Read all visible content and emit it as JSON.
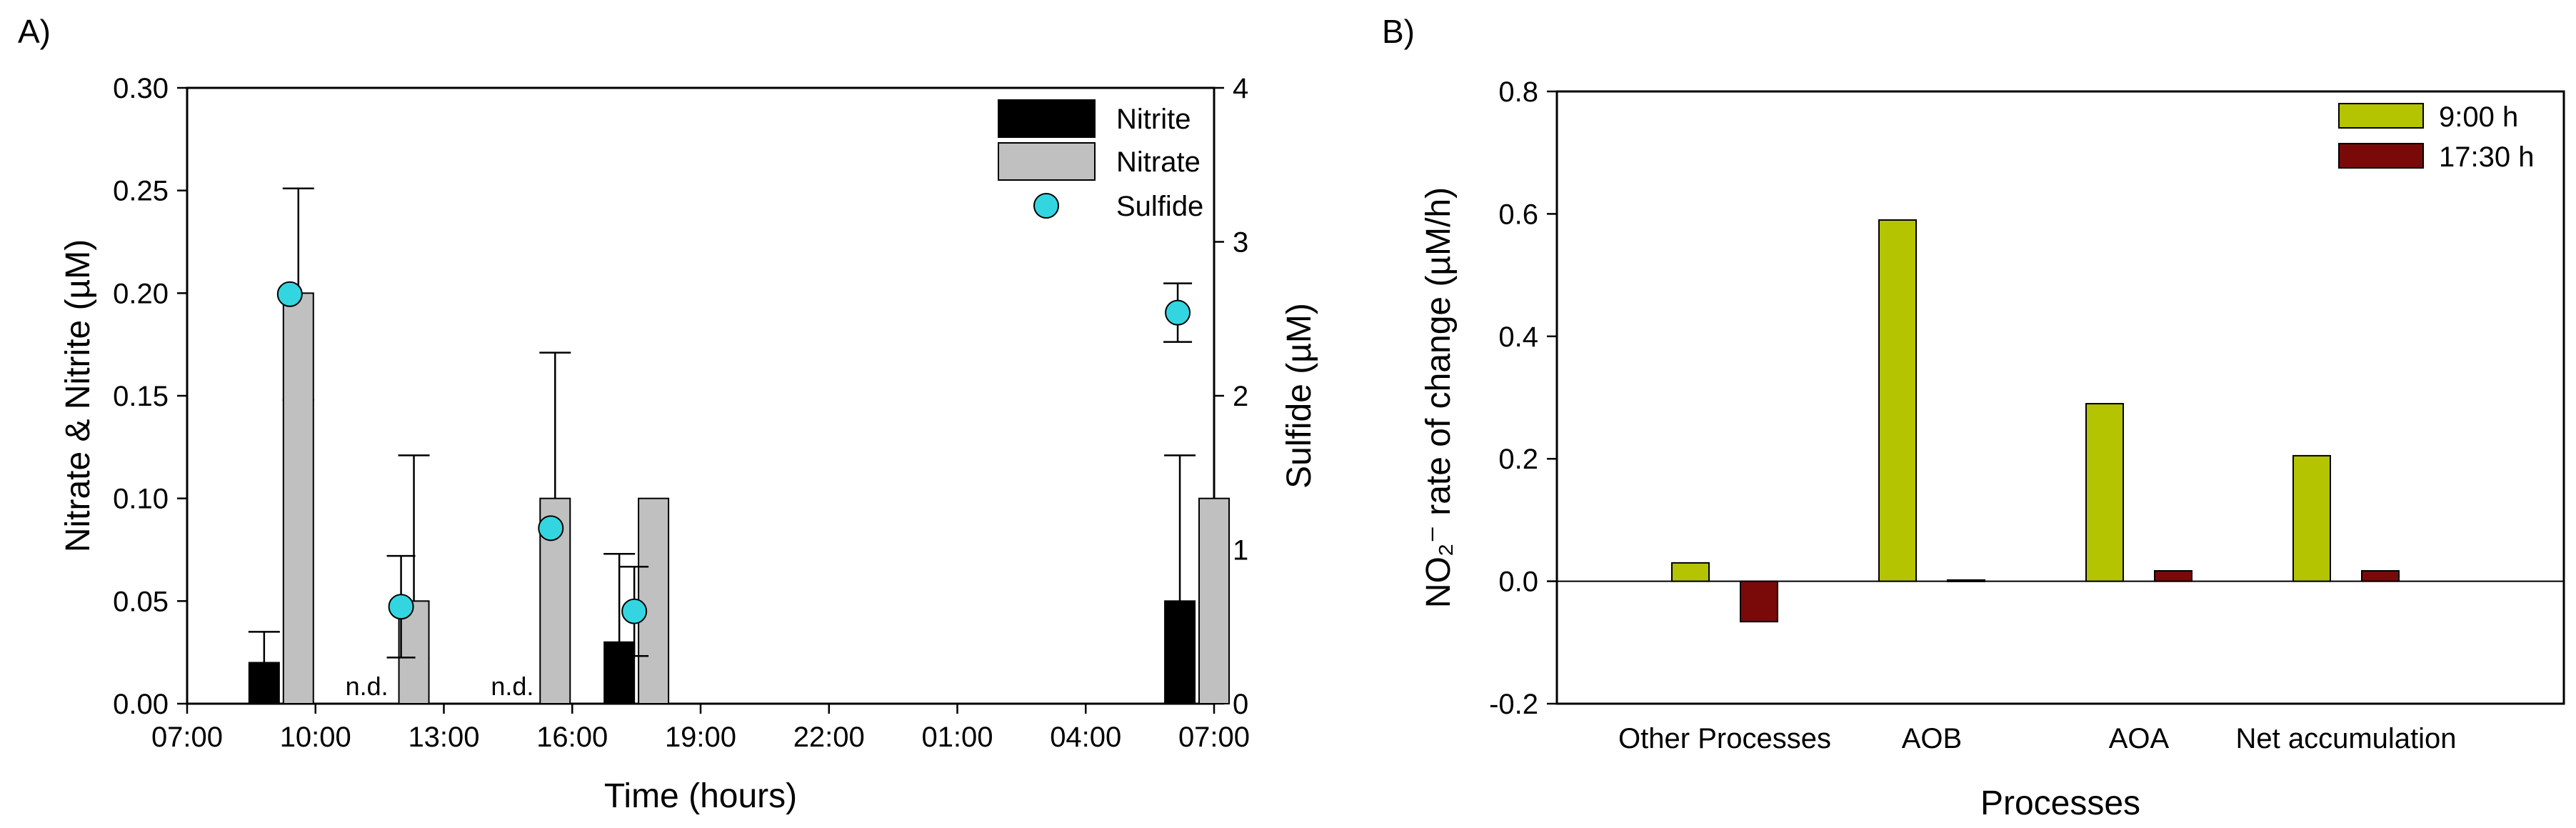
{
  "chart_data": [
    {
      "panel_label": "A)",
      "type": "bar",
      "xlabel": "Time (hours)",
      "ylabel": "Nitrate & Nitrite (µM)",
      "y2label": "Sulfide (µM)",
      "x_ticks": [
        "07:00",
        "10:00",
        "13:00",
        "16:00",
        "19:00",
        "22:00",
        "01:00",
        "04:00",
        "07:00"
      ],
      "x_tick_hours": [
        0,
        3,
        6,
        9,
        12,
        15,
        18,
        21,
        24
      ],
      "xlim_hours": [
        0,
        24
      ],
      "ylim": [
        0,
        0.3
      ],
      "y_ticks": [
        "0.00",
        "0.05",
        "0.10",
        "0.15",
        "0.20",
        "0.25",
        "0.30"
      ],
      "y_tick_values": [
        0,
        0.05,
        0.1,
        0.15,
        0.2,
        0.25,
        0.3
      ],
      "y2lim": [
        0,
        4
      ],
      "y2_ticks": [
        "0",
        "1",
        "2",
        "3",
        "4"
      ],
      "y2_tick_values": [
        0,
        1,
        2,
        3,
        4
      ],
      "legend": [
        {
          "name": "Nitrite",
          "color": "#000000",
          "kind": "bar"
        },
        {
          "name": "Nitrate",
          "color": "#c0c0c0",
          "kind": "bar"
        },
        {
          "name": "Sulfide",
          "color": "#33d6e0",
          "kind": "point"
        }
      ],
      "nitrite": [
        {
          "hour": 1.8,
          "value": 0.02,
          "err": 0.015
        },
        {
          "hour": 10.1,
          "value": 0.03,
          "err": 0.043
        },
        {
          "hour": 23.2,
          "value": 0.05,
          "err": 0.071
        }
      ],
      "nitrate": [
        {
          "hour": 2.6,
          "value": 0.2,
          "err": 0.051,
          "err_lower": 0.052
        },
        {
          "hour": 5.3,
          "value": 0.05,
          "err": 0.071,
          "err_lower": 0.028
        },
        {
          "hour": 8.6,
          "value": 0.1,
          "err": 0.071
        },
        {
          "hour": 10.9,
          "value": 0.1,
          "err": 0.0
        },
        {
          "hour": 24.0,
          "value": 0.1,
          "err": 0.0
        }
      ],
      "sulfide": [
        {
          "hour": 2.4,
          "value": 2.66,
          "err": 0
        },
        {
          "hour": 5.0,
          "value": 0.63,
          "err": 0.33
        },
        {
          "hour": 8.5,
          "value": 1.14,
          "err": 0
        },
        {
          "hour": 10.45,
          "value": 0.6,
          "err": 0.29
        },
        {
          "hour": 23.15,
          "value": 2.54,
          "err": 0.19
        }
      ],
      "annotations": [
        {
          "text": "n.d.",
          "hour": 4.2
        },
        {
          "text": "n.d.",
          "hour": 7.6
        }
      ]
    },
    {
      "panel_label": "B)",
      "type": "bar",
      "xlabel": "Processes",
      "ylabel": "NO₂⁻ rate of change (µM/h)",
      "categories": [
        "Other Processes",
        "AOB",
        "AOA",
        "Net accumulation"
      ],
      "ylim": [
        -0.2,
        0.8
      ],
      "y_ticks": [
        "-0.2",
        "0.0",
        "0.2",
        "0.4",
        "0.6",
        "0.8"
      ],
      "y_tick_values": [
        -0.2,
        0,
        0.2,
        0.4,
        0.6,
        0.8
      ],
      "series": [
        {
          "name": "9:00 h",
          "color": "#b4c400",
          "values": [
            0.03,
            0.59,
            0.29,
            0.205
          ]
        },
        {
          "name": "17:30 h",
          "color": "#7a0a0a",
          "values": [
            -0.066,
            0.002,
            0.017,
            0.017
          ]
        }
      ]
    }
  ]
}
